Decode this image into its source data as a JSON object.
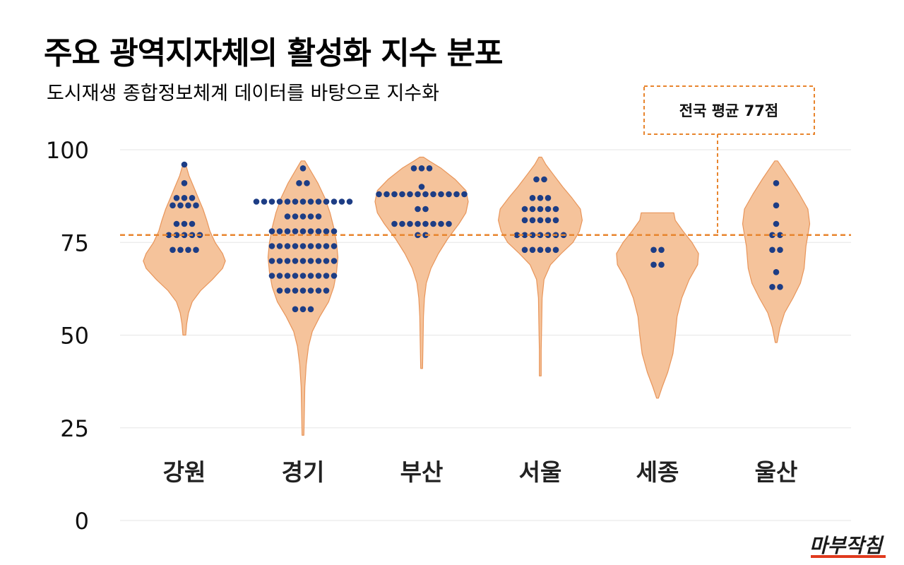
{
  "title": "주요 광역지자체의 활성화 지수 분포",
  "subtitle": "도시재생 종합정보체계 데이터를 바탕으로 지수화",
  "logo": "마부작침",
  "colors": {
    "violin_fill": "#f5c39b",
    "violin_stroke": "#e8955a",
    "dot": "#1d3d85",
    "avg_line": "#e8852e",
    "grid": "#e6e6e6"
  },
  "chart_data": {
    "type": "violin",
    "ylim": [
      0,
      100
    ],
    "yticks": [
      0,
      25,
      50,
      75,
      100
    ],
    "ytick_labels": [
      "0",
      "25",
      "50",
      "75",
      "100"
    ],
    "grid": true,
    "reference_line": {
      "value": 77,
      "label": "전국 평균 77점"
    },
    "categories": [
      "강원",
      "경기",
      "부산",
      "서울",
      "세종",
      "울산"
    ],
    "series": [
      {
        "category": "강원",
        "min": 50,
        "max": 96,
        "points": [
          96,
          91,
          87,
          87,
          87,
          85,
          85,
          85,
          85,
          80,
          80,
          80,
          77,
          77,
          77,
          77,
          77,
          73,
          73,
          73,
          73
        ],
        "density": [
          [
            50,
            0.03
          ],
          [
            53,
            0.05
          ],
          [
            56,
            0.09
          ],
          [
            59,
            0.17
          ],
          [
            62,
            0.35
          ],
          [
            65,
            0.6
          ],
          [
            68,
            0.82
          ],
          [
            70,
            0.88
          ],
          [
            72,
            0.82
          ],
          [
            75,
            0.66
          ],
          [
            78,
            0.55
          ],
          [
            81,
            0.48
          ],
          [
            84,
            0.4
          ],
          [
            87,
            0.3
          ],
          [
            90,
            0.2
          ],
          [
            93,
            0.1
          ],
          [
            96,
            0.03
          ]
        ]
      },
      {
        "category": "경기",
        "min": 23,
        "max": 97,
        "points": [
          95,
          91,
          91,
          86,
          86,
          86,
          86,
          86,
          86,
          86,
          86,
          86,
          86,
          86,
          86,
          86,
          82,
          82,
          82,
          82,
          82,
          78,
          78,
          78,
          78,
          78,
          78,
          78,
          78,
          78,
          74,
          74,
          74,
          74,
          74,
          74,
          74,
          74,
          74,
          70,
          70,
          70,
          70,
          70,
          70,
          70,
          70,
          70,
          66,
          66,
          66,
          66,
          66,
          66,
          66,
          66,
          66,
          62,
          62,
          62,
          62,
          62,
          62,
          62,
          57,
          57,
          57
        ],
        "density": [
          [
            23,
            0.02
          ],
          [
            30,
            0.03
          ],
          [
            36,
            0.04
          ],
          [
            42,
            0.07
          ],
          [
            47,
            0.12
          ],
          [
            51,
            0.2
          ],
          [
            55,
            0.36
          ],
          [
            59,
            0.55
          ],
          [
            63,
            0.66
          ],
          [
            67,
            0.72
          ],
          [
            71,
            0.75
          ],
          [
            75,
            0.72
          ],
          [
            79,
            0.66
          ],
          [
            83,
            0.58
          ],
          [
            87,
            0.47
          ],
          [
            91,
            0.32
          ],
          [
            94,
            0.18
          ],
          [
            97,
            0.04
          ]
        ]
      },
      {
        "category": "부산",
        "min": 41,
        "max": 98,
        "points": [
          95,
          95,
          95,
          90,
          88,
          88,
          88,
          88,
          88,
          88,
          88,
          88,
          88,
          88,
          88,
          88,
          84,
          84,
          80,
          80,
          80,
          80,
          80,
          80,
          80,
          80,
          77,
          77
        ],
        "density": [
          [
            41,
            0.02
          ],
          [
            48,
            0.03
          ],
          [
            55,
            0.04
          ],
          [
            60,
            0.06
          ],
          [
            64,
            0.1
          ],
          [
            68,
            0.2
          ],
          [
            72,
            0.36
          ],
          [
            76,
            0.56
          ],
          [
            80,
            0.8
          ],
          [
            83,
            0.95
          ],
          [
            86,
            1.0
          ],
          [
            89,
            0.95
          ],
          [
            92,
            0.72
          ],
          [
            95,
            0.42
          ],
          [
            97,
            0.16
          ],
          [
            98,
            0.04
          ]
        ]
      },
      {
        "category": "서울",
        "min": 39,
        "max": 98,
        "points": [
          92,
          92,
          87,
          87,
          87,
          84,
          84,
          84,
          84,
          84,
          81,
          81,
          81,
          81,
          81,
          77,
          77,
          77,
          77,
          77,
          77,
          77,
          73,
          73,
          73,
          73,
          73
        ],
        "density": [
          [
            39,
            0.02
          ],
          [
            46,
            0.02
          ],
          [
            53,
            0.03
          ],
          [
            60,
            0.04
          ],
          [
            65,
            0.08
          ],
          [
            69,
            0.22
          ],
          [
            72,
            0.45
          ],
          [
            75,
            0.7
          ],
          [
            78,
            0.84
          ],
          [
            81,
            0.9
          ],
          [
            84,
            0.86
          ],
          [
            87,
            0.68
          ],
          [
            90,
            0.48
          ],
          [
            93,
            0.3
          ],
          [
            96,
            0.12
          ],
          [
            98,
            0.03
          ]
        ]
      },
      {
        "category": "세종",
        "min": 33,
        "max": 83,
        "points": [
          73,
          73,
          69,
          69
        ],
        "density": [
          [
            33,
            0.02
          ],
          [
            36,
            0.1
          ],
          [
            40,
            0.22
          ],
          [
            45,
            0.33
          ],
          [
            50,
            0.38
          ],
          [
            55,
            0.42
          ],
          [
            60,
            0.52
          ],
          [
            65,
            0.68
          ],
          [
            69,
            0.86
          ],
          [
            72,
            0.88
          ],
          [
            75,
            0.74
          ],
          [
            78,
            0.55
          ],
          [
            81,
            0.38
          ],
          [
            83,
            0.35
          ]
        ]
      },
      {
        "category": "울산",
        "min": 48,
        "max": 97,
        "points": [
          91,
          85,
          80,
          77,
          77,
          73,
          73,
          67,
          63,
          63
        ],
        "density": [
          [
            48,
            0.02
          ],
          [
            52,
            0.08
          ],
          [
            56,
            0.18
          ],
          [
            60,
            0.36
          ],
          [
            64,
            0.52
          ],
          [
            68,
            0.6
          ],
          [
            71,
            0.62
          ],
          [
            74,
            0.64
          ],
          [
            77,
            0.68
          ],
          [
            80,
            0.72
          ],
          [
            84,
            0.68
          ],
          [
            88,
            0.5
          ],
          [
            92,
            0.3
          ],
          [
            95,
            0.14
          ],
          [
            97,
            0.03
          ]
        ]
      }
    ]
  }
}
